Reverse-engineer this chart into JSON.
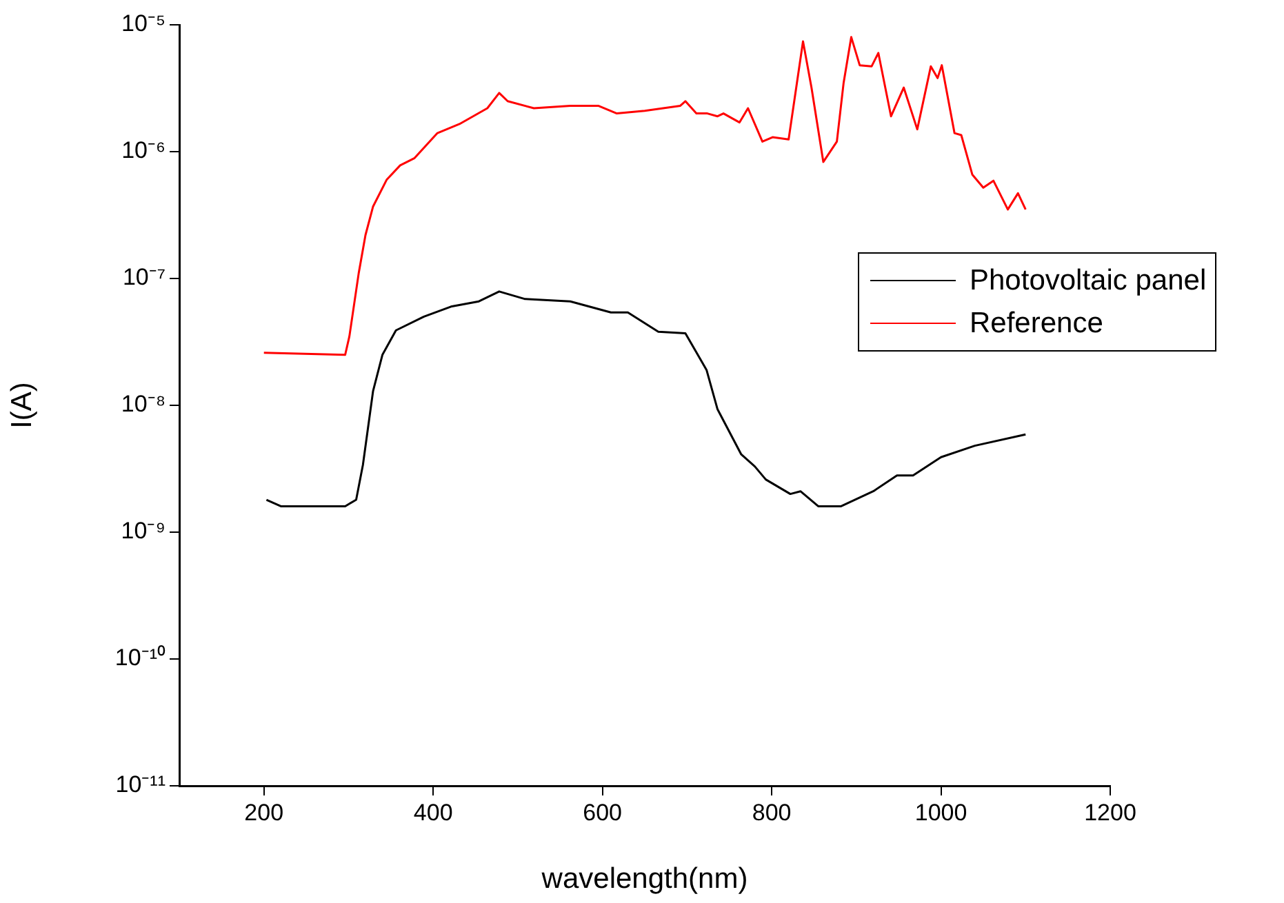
{
  "chart_data": {
    "type": "line",
    "xlabel": "wavelength(nm)",
    "ylabel": "I(A)",
    "log": "y",
    "grid": false,
    "legend": "right",
    "marker": "none",
    "line_style": "solid",
    "xlim": [
      100,
      1200
    ],
    "xticks": [
      200,
      400,
      600,
      800,
      1000,
      1200
    ],
    "ylim": [
      1e-11,
      1e-05
    ],
    "yticks": [
      {
        "value": 1e-11,
        "label": "10⁻¹¹"
      },
      {
        "value": 1e-10,
        "label": "10⁻¹⁰"
      },
      {
        "value": 1e-09,
        "label": "10⁻⁹"
      },
      {
        "value": 1e-08,
        "label": "10⁻⁸"
      },
      {
        "value": 1e-07,
        "label": "10⁻⁷"
      },
      {
        "value": 1e-06,
        "label": "10⁻⁶"
      },
      {
        "value": 1e-05,
        "label": "10⁻⁵"
      }
    ],
    "series": [
      {
        "name": "Photovoltaic panel",
        "color": "#000000",
        "x": [
          203,
          220,
          296,
          309,
          317,
          329,
          340,
          356,
          389,
          421,
          454,
          478,
          508,
          562,
          610,
          630,
          666,
          698,
          723,
          736,
          764,
          780,
          793,
          822,
          834,
          855,
          882,
          920,
          948,
          967,
          1000,
          1040,
          1100
        ],
        "values": [
          1.8e-09,
          1.6e-09,
          1.6e-09,
          1.8e-09,
          3.4e-09,
          1.3e-08,
          2.5e-08,
          3.9e-08,
          5e-08,
          6e-08,
          6.6e-08,
          7.9e-08,
          6.9e-08,
          6.6e-08,
          5.4e-08,
          5.4e-08,
          3.8e-08,
          3.7e-08,
          1.9e-08,
          9.3e-09,
          4.1e-09,
          3.3e-09,
          2.6e-09,
          2e-09,
          2.1e-09,
          1.6e-09,
          1.6e-09,
          2.1e-09,
          2.8e-09,
          2.8e-09,
          3.9e-09,
          4.8e-09,
          5.9e-09
        ]
      },
      {
        "name": "Reference",
        "color": "#ff0000",
        "x": [
          200,
          296,
          301,
          312,
          320,
          329,
          345,
          361,
          378,
          405,
          431,
          464,
          478,
          488,
          519,
          562,
          595,
          617,
          650,
          692,
          698,
          711,
          724,
          736,
          743,
          762,
          772,
          789,
          801,
          820,
          837,
          847,
          861,
          877,
          885,
          894,
          904,
          918,
          926,
          941,
          956,
          972,
          988,
          996,
          1001,
          1016,
          1024,
          1037,
          1050,
          1062,
          1079,
          1091,
          1100
        ],
        "values": [
          2.6e-08,
          2.5e-08,
          3.5e-08,
          1.1e-07,
          2.2e-07,
          3.7e-07,
          6e-07,
          7.8e-07,
          8.9e-07,
          1.4e-06,
          1.65e-06,
          2.2e-06,
          2.9e-06,
          2.5e-06,
          2.2e-06,
          2.3e-06,
          2.3e-06,
          2e-06,
          2.1e-06,
          2.3e-06,
          2.5e-06,
          2e-06,
          2e-06,
          1.9e-06,
          2e-06,
          1.7e-06,
          2.2e-06,
          1.2e-06,
          1.3e-06,
          1.25e-06,
          7.4e-06,
          3.2e-06,
          8.3e-07,
          1.2e-06,
          3.5e-06,
          8e-06,
          4.8e-06,
          4.7e-06,
          6e-06,
          1.9e-06,
          3.2e-06,
          1.5e-06,
          4.7e-06,
          3.8e-06,
          4.8e-06,
          1.4e-06,
          1.35e-06,
          6.6e-07,
          5.2e-07,
          5.9e-07,
          3.5e-07,
          4.7e-07,
          3.5e-07
        ]
      }
    ]
  }
}
